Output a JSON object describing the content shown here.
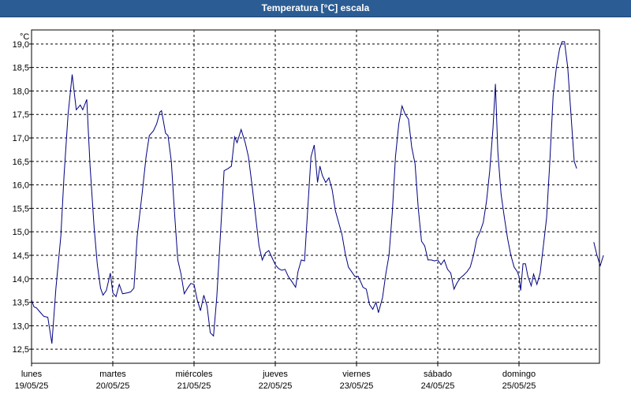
{
  "window": {
    "title": "Temperatura [°C] escala"
  },
  "chart_data": {
    "type": "line",
    "unit_label": "°C",
    "ylim": [
      12.2,
      19.3
    ],
    "xlim": [
      0,
      7.12
    ],
    "yticks": [
      12.5,
      13.0,
      13.5,
      14.0,
      14.5,
      15.0,
      15.5,
      16.0,
      16.5,
      17.0,
      17.5,
      18.0,
      18.5,
      19.0
    ],
    "ytick_labels": [
      "12,5",
      "13,0",
      "13,5",
      "14,0",
      "14,5",
      "15,0",
      "15,5",
      "16,0",
      "16,5",
      "17,0",
      "17,5",
      "18,0",
      "18,5",
      "19,0"
    ],
    "x_days": [
      {
        "name": "lunes",
        "date": "19/05/25",
        "x": 0
      },
      {
        "name": "martes",
        "date": "20/05/25",
        "x": 1
      },
      {
        "name": "miércoles",
        "date": "21/05/25",
        "x": 2
      },
      {
        "name": "jueves",
        "date": "22/05/25",
        "x": 3
      },
      {
        "name": "viernes",
        "date": "23/05/25",
        "x": 4
      },
      {
        "name": "sábado",
        "date": "24/05/25",
        "x": 5
      },
      {
        "name": "domingo",
        "date": "25/05/25",
        "x": 6
      }
    ],
    "grid": true,
    "line_color": "#000080",
    "series": [
      {
        "segments": [
          [
            [
              0.0,
              13.55
            ],
            [
              0.03,
              13.4
            ],
            [
              0.06,
              13.38
            ],
            [
              0.1,
              13.3
            ],
            [
              0.15,
              13.2
            ],
            [
              0.2,
              13.18
            ],
            [
              0.25,
              12.62
            ],
            [
              0.3,
              13.8
            ],
            [
              0.36,
              14.9
            ],
            [
              0.4,
              16.2
            ],
            [
              0.45,
              17.5
            ],
            [
              0.5,
              18.35
            ],
            [
              0.55,
              17.6
            ],
            [
              0.6,
              17.7
            ],
            [
              0.63,
              17.6
            ],
            [
              0.68,
              17.82
            ],
            [
              0.72,
              16.4
            ],
            [
              0.77,
              15.1
            ],
            [
              0.81,
              14.3
            ],
            [
              0.85,
              13.8
            ],
            [
              0.88,
              13.65
            ],
            [
              0.92,
              13.75
            ],
            [
              0.97,
              14.12
            ],
            [
              1.0,
              13.7
            ],
            [
              1.04,
              13.62
            ],
            [
              1.08,
              13.88
            ],
            [
              1.12,
              13.68
            ],
            [
              1.18,
              13.7
            ],
            [
              1.22,
              13.72
            ],
            [
              1.26,
              13.8
            ],
            [
              1.3,
              14.9
            ],
            [
              1.36,
              15.8
            ],
            [
              1.41,
              16.6
            ],
            [
              1.45,
              17.05
            ],
            [
              1.5,
              17.15
            ],
            [
              1.54,
              17.3
            ],
            [
              1.58,
              17.55
            ],
            [
              1.6,
              17.58
            ],
            [
              1.65,
              17.1
            ],
            [
              1.68,
              17.05
            ],
            [
              1.72,
              16.5
            ],
            [
              1.76,
              15.4
            ],
            [
              1.8,
              14.4
            ],
            [
              1.84,
              14.1
            ],
            [
              1.88,
              13.68
            ],
            [
              1.92,
              13.8
            ],
            [
              1.96,
              13.9
            ],
            [
              2.0,
              13.88
            ],
            [
              2.04,
              13.55
            ],
            [
              2.08,
              13.32
            ],
            [
              2.12,
              13.65
            ],
            [
              2.16,
              13.42
            ],
            [
              2.2,
              12.85
            ],
            [
              2.24,
              12.78
            ],
            [
              2.28,
              13.6
            ],
            [
              2.32,
              14.8
            ],
            [
              2.37,
              16.3
            ],
            [
              2.42,
              16.35
            ],
            [
              2.46,
              16.4
            ],
            [
              2.5,
              17.02
            ],
            [
              2.53,
              16.9
            ],
            [
              2.58,
              17.18
            ],
            [
              2.63,
              16.9
            ],
            [
              2.67,
              16.6
            ],
            [
              2.72,
              15.9
            ],
            [
              2.76,
              15.3
            ],
            [
              2.8,
              14.7
            ],
            [
              2.84,
              14.4
            ],
            [
              2.88,
              14.55
            ],
            [
              2.92,
              14.6
            ],
            [
              2.96,
              14.45
            ],
            [
              3.0,
              14.3
            ],
            [
              3.04,
              14.22
            ],
            [
              3.08,
              14.18
            ],
            [
              3.12,
              14.2
            ],
            [
              3.16,
              14.05
            ],
            [
              3.2,
              13.95
            ],
            [
              3.25,
              13.82
            ],
            [
              3.28,
              14.15
            ],
            [
              3.32,
              14.4
            ],
            [
              3.36,
              14.38
            ],
            [
              3.4,
              15.5
            ],
            [
              3.44,
              16.6
            ],
            [
              3.48,
              16.85
            ],
            [
              3.52,
              16.05
            ],
            [
              3.55,
              16.4
            ],
            [
              3.58,
              16.2
            ],
            [
              3.62,
              16.05
            ],
            [
              3.66,
              16.15
            ],
            [
              3.7,
              15.9
            ],
            [
              3.74,
              15.45
            ],
            [
              3.78,
              15.2
            ],
            [
              3.82,
              14.95
            ],
            [
              3.86,
              14.55
            ],
            [
              3.9,
              14.25
            ],
            [
              3.94,
              14.15
            ],
            [
              3.98,
              14.05
            ],
            [
              4.02,
              14.05
            ],
            [
              4.06,
              13.9
            ],
            [
              4.08,
              13.82
            ],
            [
              4.12,
              13.78
            ],
            [
              4.16,
              13.45
            ],
            [
              4.2,
              13.35
            ],
            [
              4.24,
              13.5
            ],
            [
              4.27,
              13.28
            ],
            [
              4.32,
              13.6
            ],
            [
              4.36,
              14.1
            ],
            [
              4.4,
              14.5
            ],
            [
              4.44,
              15.4
            ],
            [
              4.48,
              16.6
            ],
            [
              4.52,
              17.3
            ],
            [
              4.56,
              17.68
            ],
            [
              4.6,
              17.5
            ],
            [
              4.64,
              17.4
            ],
            [
              4.68,
              16.8
            ],
            [
              4.72,
              16.45
            ],
            [
              4.76,
              15.5
            ],
            [
              4.8,
              14.8
            ],
            [
              4.84,
              14.7
            ],
            [
              4.88,
              14.4
            ],
            [
              4.92,
              14.4
            ],
            [
              4.96,
              14.38
            ],
            [
              5.0,
              14.4
            ],
            [
              5.04,
              14.3
            ],
            [
              5.08,
              14.4
            ],
            [
              5.12,
              14.2
            ],
            [
              5.16,
              14.12
            ],
            [
              5.2,
              13.78
            ],
            [
              5.24,
              13.92
            ],
            [
              5.28,
              14.02
            ],
            [
              5.32,
              14.08
            ],
            [
              5.36,
              14.15
            ],
            [
              5.4,
              14.25
            ],
            [
              5.44,
              14.5
            ],
            [
              5.48,
              14.85
            ],
            [
              5.52,
              15.0
            ],
            [
              5.56,
              15.2
            ],
            [
              5.6,
              15.65
            ],
            [
              5.64,
              16.3
            ],
            [
              5.68,
              17.2
            ],
            [
              5.71,
              18.15
            ],
            [
              5.74,
              16.7
            ],
            [
              5.78,
              15.8
            ],
            [
              5.82,
              15.3
            ],
            [
              5.86,
              14.85
            ],
            [
              5.9,
              14.5
            ],
            [
              5.94,
              14.25
            ],
            [
              5.98,
              14.15
            ],
            [
              6.0,
              14.05
            ],
            [
              6.02,
              13.75
            ],
            [
              6.05,
              14.32
            ],
            [
              6.08,
              14.32
            ],
            [
              6.11,
              14.05
            ],
            [
              6.15,
              13.85
            ],
            [
              6.18,
              14.1
            ],
            [
              6.22,
              13.88
            ],
            [
              6.26,
              14.12
            ],
            [
              6.3,
              14.7
            ],
            [
              6.34,
              15.3
            ],
            [
              6.38,
              16.5
            ],
            [
              6.42,
              17.9
            ],
            [
              6.46,
              18.5
            ],
            [
              6.5,
              18.9
            ],
            [
              6.53,
              19.05
            ],
            [
              6.56,
              19.05
            ],
            [
              6.6,
              18.5
            ],
            [
              6.64,
              17.5
            ],
            [
              6.68,
              16.5
            ],
            [
              6.71,
              16.35
            ]
          ],
          [
            [
              6.92,
              14.78
            ],
            [
              6.96,
              14.5
            ],
            [
              7.0,
              14.28
            ],
            [
              7.04,
              14.5
            ]
          ]
        ]
      }
    ]
  }
}
